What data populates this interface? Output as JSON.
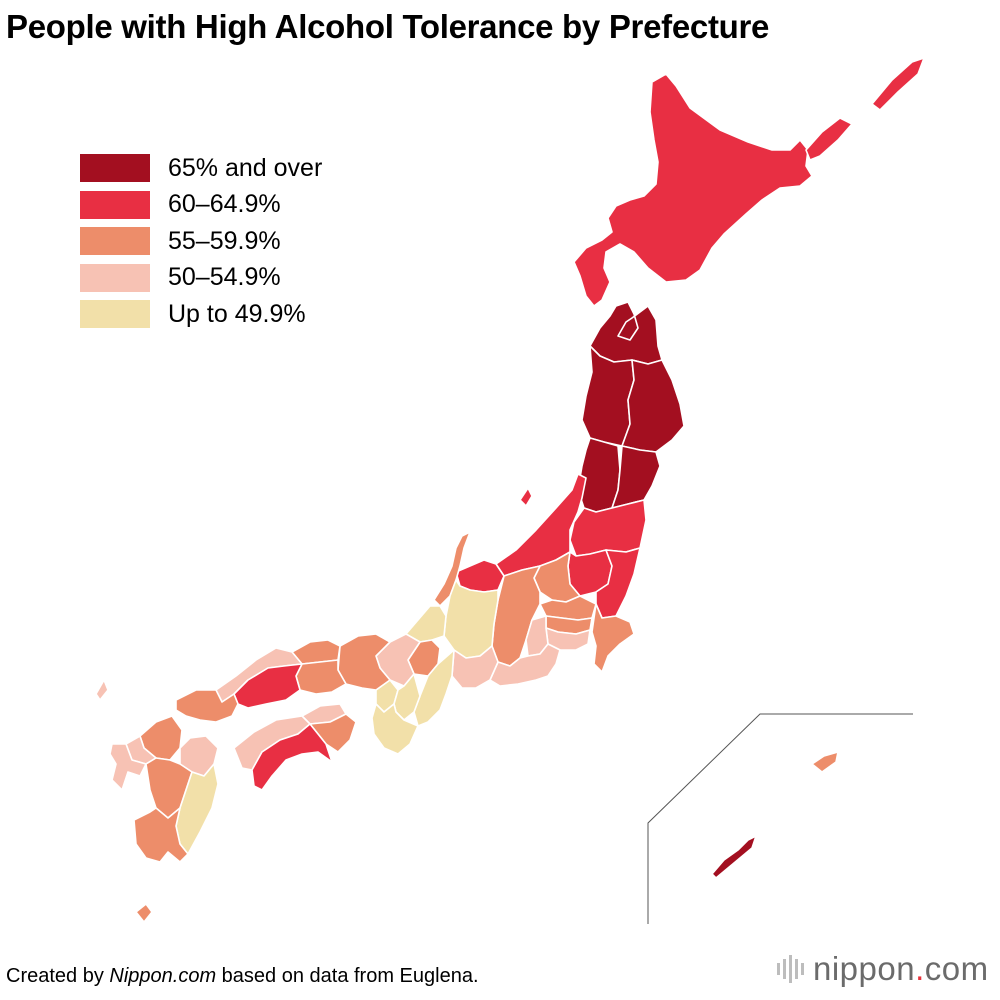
{
  "title": "People with High Alcohol Tolerance by Prefecture",
  "legend": [
    {
      "label": "65% and over",
      "color": "#a30f20"
    },
    {
      "label": "60–64.9%",
      "color": "#e82f43"
    },
    {
      "label": "55–59.9%",
      "color": "#ed8d6a"
    },
    {
      "label": "50–54.9%",
      "color": "#f7c2b4"
    },
    {
      "label": "Up to 49.9%",
      "color": "#f2e0a9"
    }
  ],
  "credit": {
    "prefix": "Created by ",
    "source": "Nippon.com",
    "suffix": " based on data from Euglena."
  },
  "brand": {
    "name": "nippon",
    "dot": ".",
    "tld": "com"
  },
  "icons": {
    "brand_mark": "nippon-com-logo-icon"
  },
  "regions": [
    {
      "name": "Hokkaido",
      "class": "60–64.9%"
    },
    {
      "name": "Aomori",
      "class": "65% and over"
    },
    {
      "name": "Iwate",
      "class": "65% and over"
    },
    {
      "name": "Akita",
      "class": "65% and over"
    },
    {
      "name": "Miyagi",
      "class": "65% and over"
    },
    {
      "name": "Yamagata",
      "class": "65% and over"
    },
    {
      "name": "Fukushima",
      "class": "60–64.9%"
    },
    {
      "name": "Niigata",
      "class": "60–64.9%"
    },
    {
      "name": "Ibaraki",
      "class": "60–64.9%"
    },
    {
      "name": "Tochigi",
      "class": "60–64.9%"
    },
    {
      "name": "Gunma",
      "class": "55–59.9%"
    },
    {
      "name": "Saitama",
      "class": "55–59.9%"
    },
    {
      "name": "Chiba",
      "class": "55–59.9%"
    },
    {
      "name": "Tokyo",
      "class": "55–59.9%"
    },
    {
      "name": "Kanagawa",
      "class": "50–54.9%"
    },
    {
      "name": "Yamanashi",
      "class": "50–54.9%"
    },
    {
      "name": "Nagano",
      "class": "55–59.9%"
    },
    {
      "name": "Toyama",
      "class": "60–64.9%"
    },
    {
      "name": "Ishikawa",
      "class": "55–59.9%"
    },
    {
      "name": "Fukui",
      "class": "Up to 49.9%"
    },
    {
      "name": "Gifu",
      "class": "Up to 49.9%"
    },
    {
      "name": "Shizuoka",
      "class": "50–54.9%"
    },
    {
      "name": "Aichi",
      "class": "50–54.9%"
    },
    {
      "name": "Mie",
      "class": "Up to 49.9%"
    },
    {
      "name": "Shiga",
      "class": "55–59.9%"
    },
    {
      "name": "Kyoto",
      "class": "50–54.9%"
    },
    {
      "name": "Osaka",
      "class": "Up to 49.9%"
    },
    {
      "name": "Nara",
      "class": "Up to 49.9%"
    },
    {
      "name": "Wakayama",
      "class": "Up to 49.9%"
    },
    {
      "name": "Hyogo",
      "class": "55–59.9%"
    },
    {
      "name": "Tottori",
      "class": "55–59.9%"
    },
    {
      "name": "Shimane",
      "class": "50–54.9%"
    },
    {
      "name": "Okayama",
      "class": "55–59.9%"
    },
    {
      "name": "Hiroshima",
      "class": "60–64.9%"
    },
    {
      "name": "Yamaguchi",
      "class": "55–59.9%"
    },
    {
      "name": "Tokushima",
      "class": "55–59.9%"
    },
    {
      "name": "Kagawa",
      "class": "50–54.9%"
    },
    {
      "name": "Ehime",
      "class": "50–54.9%"
    },
    {
      "name": "Kochi",
      "class": "60–64.9%"
    },
    {
      "name": "Fukuoka",
      "class": "55–59.9%"
    },
    {
      "name": "Saga",
      "class": "50–54.9%"
    },
    {
      "name": "Nagasaki",
      "class": "50–54.9%"
    },
    {
      "name": "Kumamoto",
      "class": "55–59.9%"
    },
    {
      "name": "Oita",
      "class": "50–54.9%"
    },
    {
      "name": "Miyazaki",
      "class": "Up to 49.9%"
    },
    {
      "name": "Kagoshima",
      "class": "55–59.9%"
    },
    {
      "name": "Okinawa",
      "class": "65% and over"
    }
  ]
}
